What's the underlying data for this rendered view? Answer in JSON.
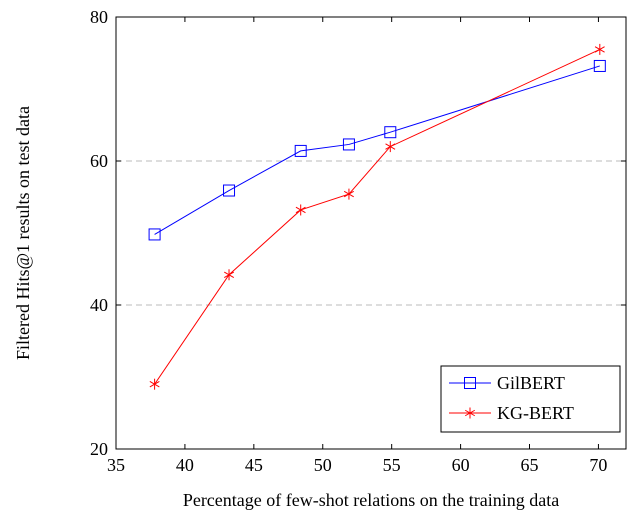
{
  "chart_data": {
    "type": "line",
    "xlabel": "Percentage of few-shot relations on the training data",
    "ylabel": "Filtered Hits@1 results on test data",
    "xlim": [
      35,
      72
    ],
    "ylim": [
      20,
      80
    ],
    "xticks": [
      35,
      40,
      45,
      50,
      55,
      60,
      65,
      70
    ],
    "yticks": [
      20,
      40,
      60,
      80
    ],
    "grid": "horizontal dashed at 40 and 60",
    "legend_position": "bottom-right",
    "series": [
      {
        "name": "GilBERT",
        "color": "#0000ff",
        "marker": "square",
        "x": [
          37.8,
          43.2,
          48.4,
          51.9,
          54.9,
          70.1
        ],
        "y": [
          49.8,
          55.9,
          61.4,
          62.3,
          64.0,
          73.2
        ]
      },
      {
        "name": "KG-BERT",
        "color": "#ff0000",
        "marker": "star",
        "x": [
          37.8,
          43.2,
          48.4,
          51.9,
          54.9,
          70.1
        ],
        "y": [
          29.0,
          44.2,
          53.2,
          55.4,
          62.0,
          75.5
        ]
      }
    ]
  }
}
